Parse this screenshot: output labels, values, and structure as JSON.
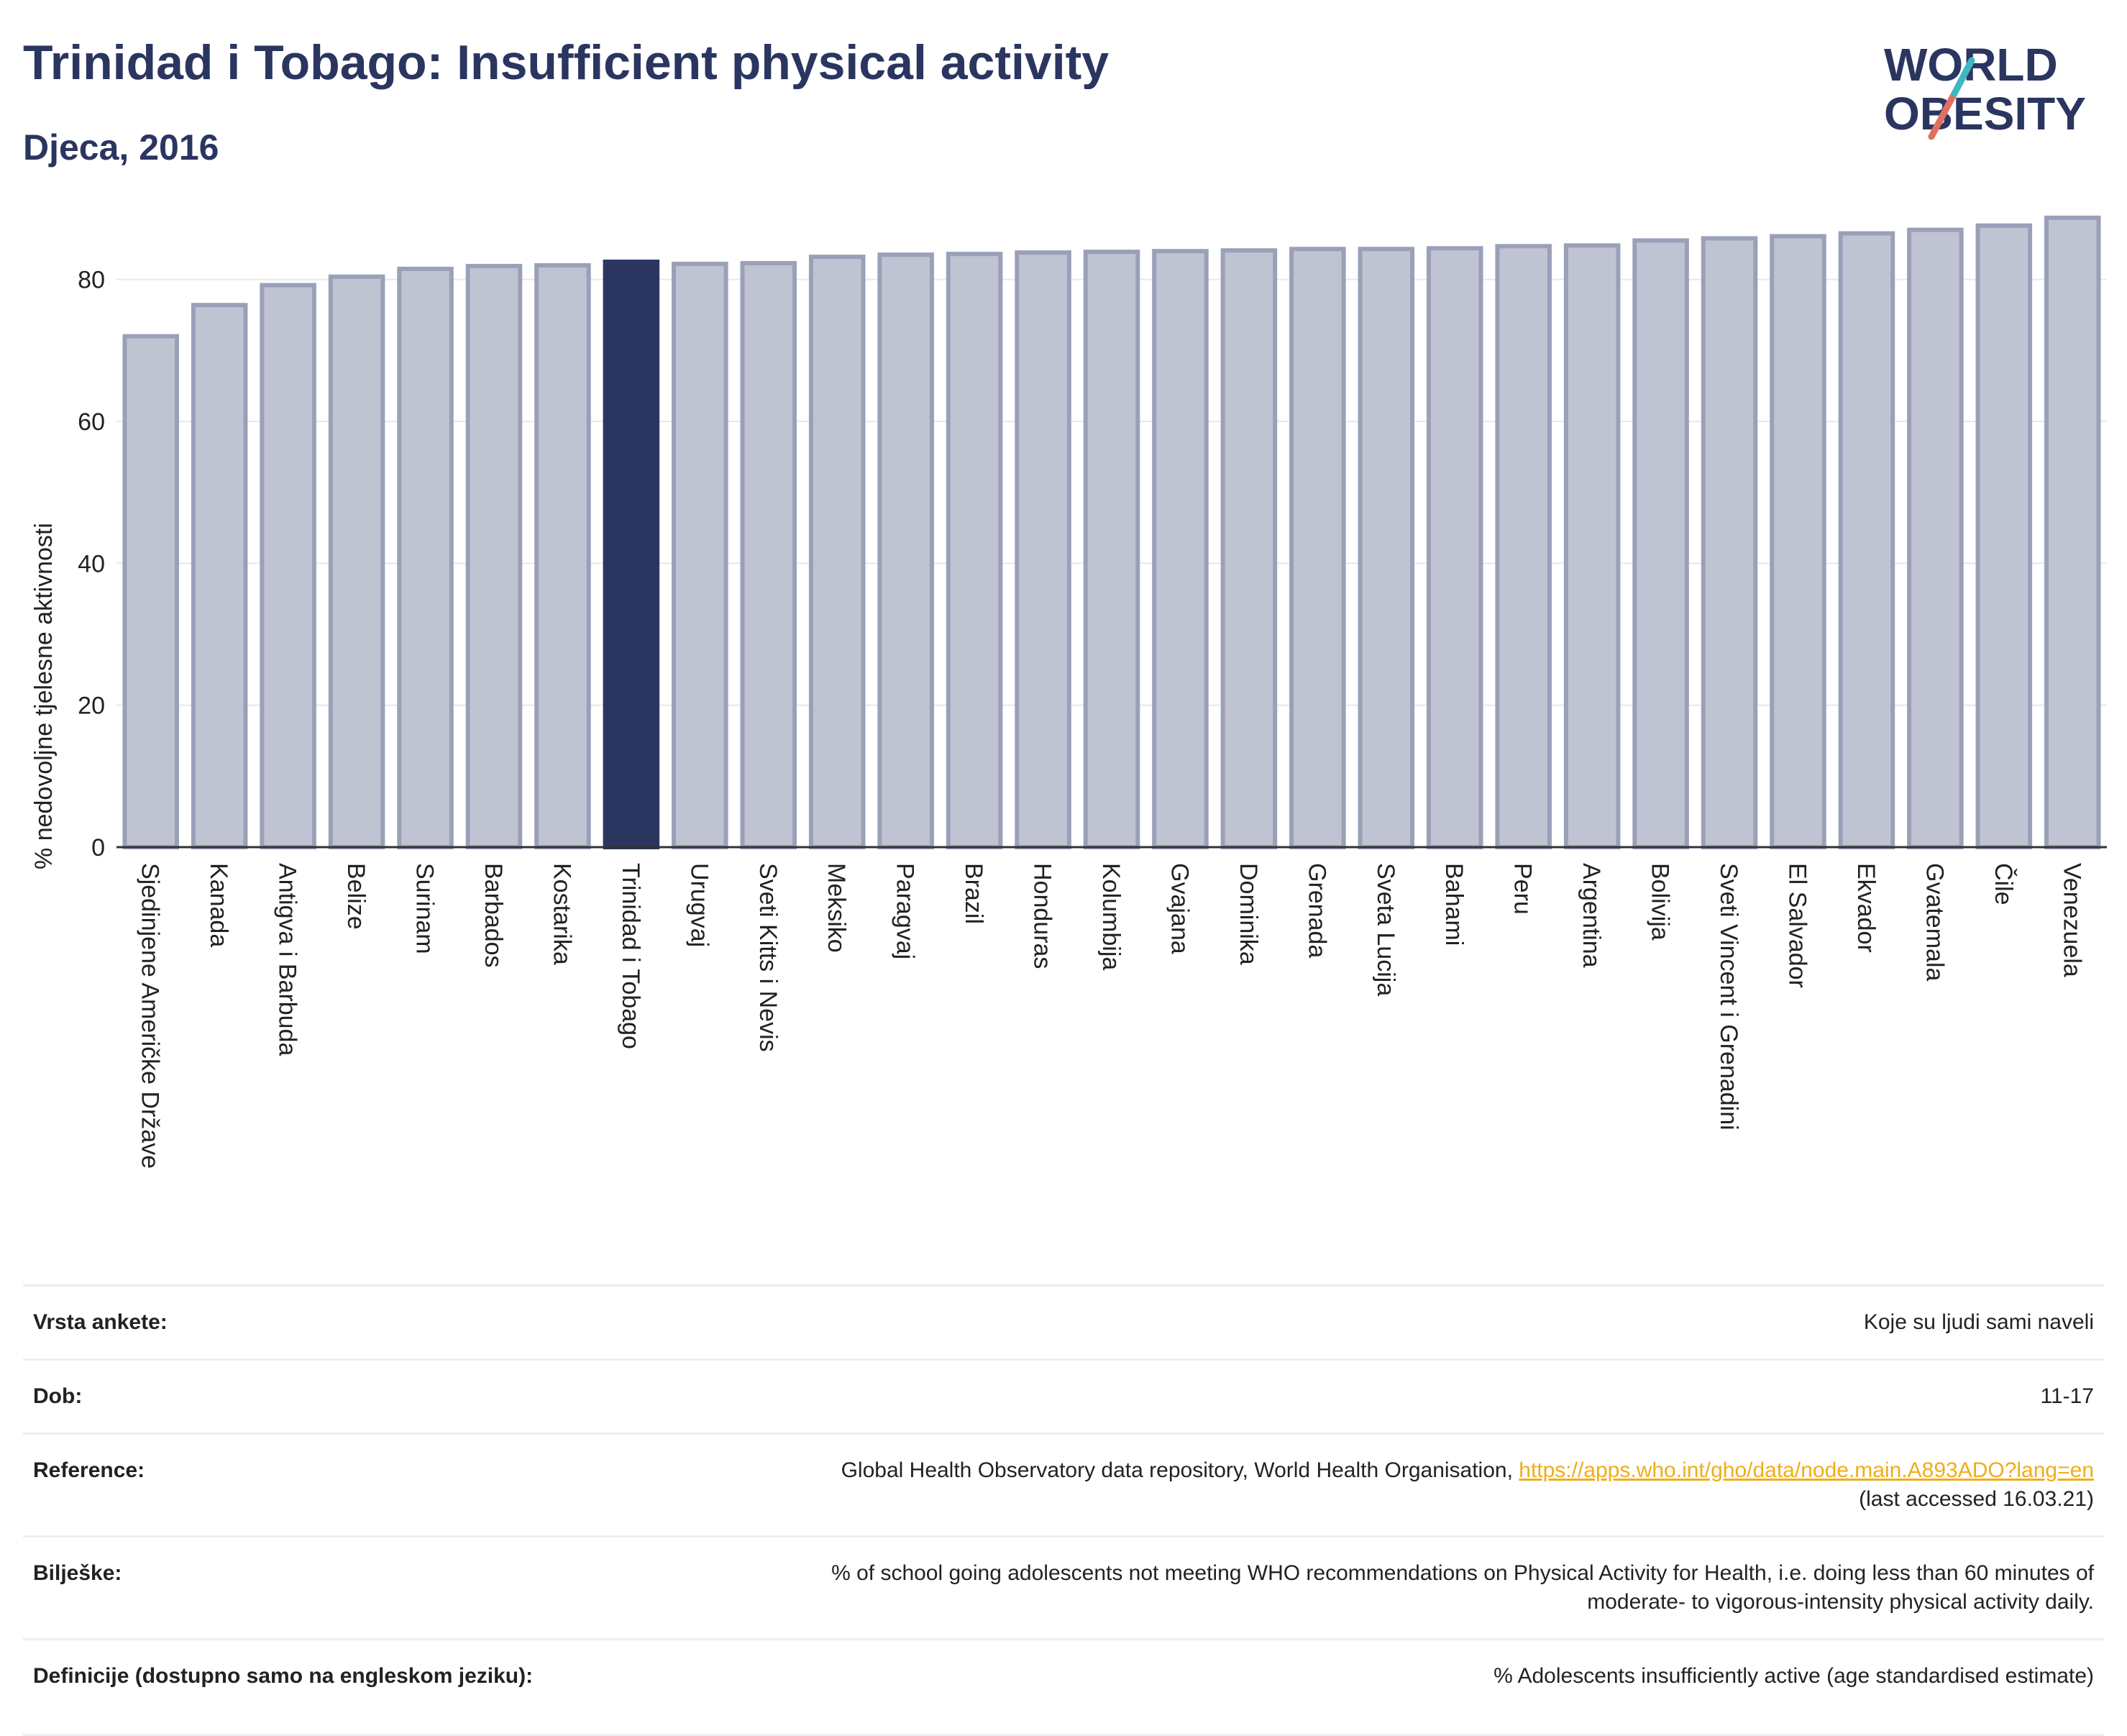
{
  "header": {
    "title": "Trinidad i Tobago: Insufficient physical activity",
    "subtitle": "Djeca, 2016",
    "logo_line1": "WORLD",
    "logo_line2": "OBESITY"
  },
  "chart_data": {
    "type": "bar",
    "ylabel": "% nedovoljne tjelesne aktivnosti",
    "ylim": [
      0,
      90
    ],
    "yticks": [
      0,
      20,
      40,
      60,
      80
    ],
    "grid": true,
    "highlight": "Trinidad i Tobago",
    "colors": {
      "bar": "#c0c4d2",
      "bar_border": "#9aa0b8",
      "highlight": "#2a3560"
    },
    "categories": [
      "Sjedinjene Američke Države",
      "Kanada",
      "Antigva i Barbuda",
      "Belize",
      "Surinam",
      "Barbados",
      "Kostarika",
      "Trinidad i Tobago",
      "Urugvaj",
      "Sveti Kitts i Nevis",
      "Meksiko",
      "Paragvaj",
      "Brazil",
      "Honduras",
      "Kolumbija",
      "Gvajana",
      "Dominika",
      "Grenada",
      "Sveta Lucija",
      "Bahami",
      "Peru",
      "Argentina",
      "Bolivija",
      "Sveti Vincent i Grenadini",
      "El Salvador",
      "Ekvador",
      "Gvatemala",
      "Čile",
      "Venezuela"
    ],
    "values": [
      72.0,
      76.4,
      79.2,
      80.4,
      81.5,
      81.9,
      82.0,
      82.5,
      82.2,
      82.3,
      83.2,
      83.5,
      83.6,
      83.8,
      83.9,
      84.0,
      84.1,
      84.3,
      84.3,
      84.4,
      84.7,
      84.8,
      85.5,
      85.8,
      86.1,
      86.5,
      87.0,
      87.6,
      88.7
    ]
  },
  "info": {
    "survey_type": {
      "label": "Vrsta ankete:",
      "value": "Koje su ljudi sami naveli"
    },
    "age": {
      "label": "Dob:",
      "value": "11-17"
    },
    "reference": {
      "label": "Reference:",
      "text": "Global Health Observatory data repository, World Health Organisation, ",
      "link": "https://apps.who.int/gho/data/node.main.A893ADO?lang=en",
      "accessed": "(last accessed 16.03.21)"
    },
    "notes": {
      "label": "Bilješke:",
      "line1": "% of school going adolescents not meeting WHO recommendations on Physical Activity for Health, i.e. doing less than 60 minutes of",
      "line2": "moderate- to vigorous-intensity physical activity daily."
    },
    "definitions": {
      "label": "Definicije (dostupno samo na engleskom jeziku):",
      "value": "% Adolescents insufficiently active (age standardised estimate)"
    }
  }
}
